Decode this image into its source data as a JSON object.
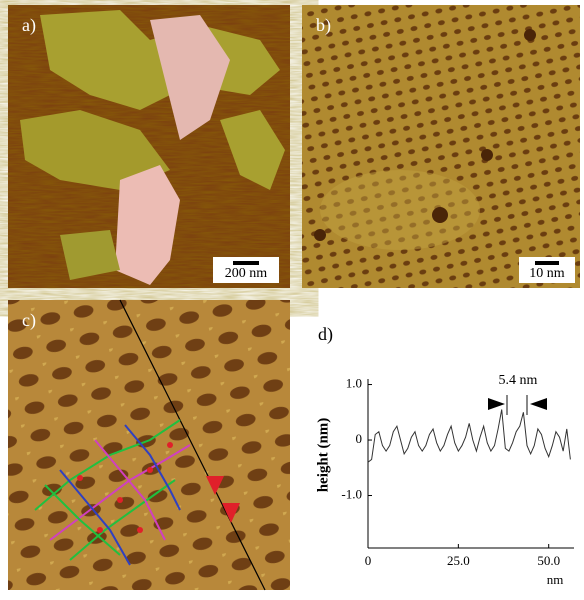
{
  "panel_labels": [
    "a)",
    "b)",
    "c)",
    "d)"
  ],
  "scale_bars": [
    "200 nm",
    "10 nm"
  ],
  "chart_data": {
    "type": "line",
    "y_label": "height (nm)",
    "x_label": "nm",
    "annotation": "5.4 nm",
    "x": [
      0,
      1,
      2,
      3,
      4,
      5,
      6,
      7,
      8,
      9,
      10,
      11,
      12,
      13,
      14,
      15,
      16,
      17,
      18,
      19,
      20,
      21,
      22,
      23,
      24,
      25,
      26,
      27,
      28,
      29,
      30,
      31,
      32,
      33,
      34,
      35,
      36,
      37,
      38,
      39,
      40,
      41,
      42,
      43,
      44,
      45,
      46,
      47,
      48,
      49,
      50,
      51,
      52,
      53,
      54,
      55,
      56
    ],
    "values": [
      -0.4,
      -0.35,
      0.1,
      0.15,
      -0.1,
      -0.2,
      -0.1,
      0.15,
      0.25,
      0.0,
      -0.25,
      -0.15,
      0.05,
      0.15,
      -0.1,
      -0.2,
      -0.1,
      0.1,
      0.2,
      -0.05,
      -0.2,
      -0.1,
      0.1,
      0.25,
      -0.05,
      -0.2,
      -0.1,
      0.05,
      0.3,
      0.0,
      -0.2,
      0.05,
      0.25,
      -0.05,
      -0.2,
      -0.1,
      0.2,
      0.55,
      -0.15,
      -0.2,
      -0.05,
      0.15,
      0.25,
      0.5,
      -0.1,
      -0.25,
      -0.1,
      0.2,
      0.1,
      -0.15,
      -0.3,
      -0.1,
      0.15,
      0.05,
      -0.2,
      0.2,
      -0.35
    ],
    "color": "#333333",
    "xlim": [
      0,
      57
    ],
    "ylim": [
      -2,
      1.1
    ],
    "xticks": [
      0,
      {
        "value": 25,
        "label": "25.0"
      },
      {
        "value": 50,
        "label": "50.0"
      }
    ],
    "yticks": [
      {
        "value": 1,
        "label": "1.0"
      },
      0,
      {
        "value": -1,
        "label": "-1.0"
      }
    ]
  }
}
